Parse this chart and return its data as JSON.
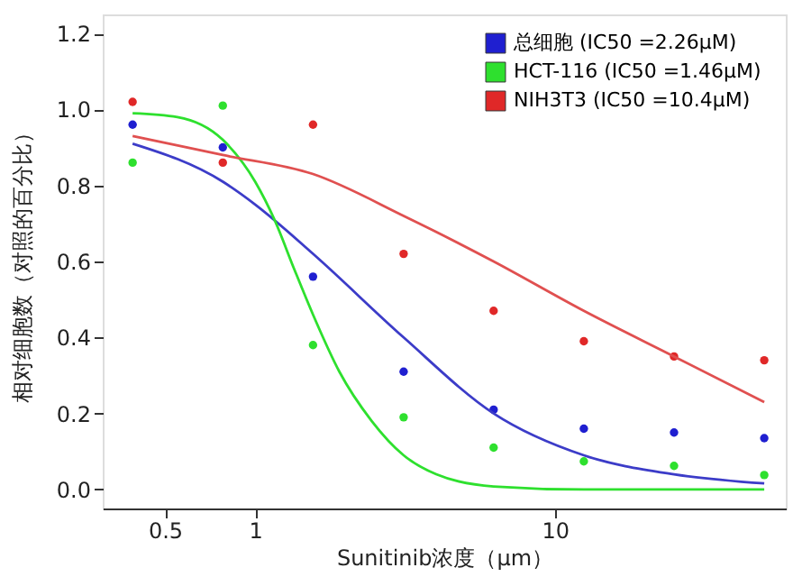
{
  "chart_data": {
    "type": "scatter",
    "xlabel": "Sunitinib浓度（μm）",
    "ylabel": "相对细胞数（对照的百分比）",
    "log": "x",
    "xlim": [
      0.31,
      59
    ],
    "xticks": [
      0.5,
      1,
      10
    ],
    "ylim": [
      -0.05,
      1.25
    ],
    "yticks": [
      {
        "value": 0,
        "label": "0.0"
      },
      0.2,
      0.4,
      0.6,
      0.8,
      {
        "value": 1,
        "label": "1.0"
      },
      1.2
    ],
    "grid": false,
    "legend": "top right",
    "marker": "circle",
    "series": [
      {
        "name": "总细胞  (IC50 =2.26μM)",
        "color": "#1f1fd0",
        "x": [
          0.39,
          0.78,
          1.56,
          3.13,
          6.25,
          12.5,
          25,
          50
        ],
        "values": [
          0.96,
          0.9,
          0.56,
          0.31,
          0.21,
          0.16,
          0.15,
          0.135
        ]
      },
      {
        "name": "HCT-116  (IC50 =1.46μM)",
        "color": "#2ee02e",
        "x": [
          0.39,
          0.78,
          1.56,
          3.13,
          6.25,
          12.5,
          25,
          50
        ],
        "values": [
          0.86,
          1.01,
          0.38,
          0.19,
          0.11,
          0.074,
          0.062,
          0.038
        ]
      },
      {
        "name": "NIH3T3  (IC50 =10.4μM)",
        "color": "#e02828",
        "x": [
          0.39,
          0.78,
          1.56,
          3.13,
          6.25,
          12.5,
          25,
          50
        ],
        "values": [
          1.02,
          0.86,
          0.96,
          0.62,
          0.47,
          0.39,
          0.35,
          0.34
        ]
      },
      {
        "type": "line",
        "color": "#3c3cc8",
        "line_style": "solid",
        "marker": "none",
        "x": [
          0.39,
          0.78,
          1.0,
          1.56,
          3.13,
          6.25,
          12.5,
          25,
          50
        ],
        "values": [
          0.91,
          0.81,
          0.75,
          0.62,
          0.4,
          0.2,
          0.09,
          0.04,
          0.016
        ]
      },
      {
        "type": "line",
        "color": "#2ee02e",
        "line_style": "solid",
        "marker": "none",
        "x": [
          0.39,
          0.55,
          0.78,
          1.0,
          1.16,
          1.35,
          1.56,
          1.91,
          2.45,
          3.13,
          4.02,
          6.25,
          12.5,
          50
        ],
        "values": [
          0.99,
          0.98,
          0.92,
          0.81,
          0.71,
          0.58,
          0.46,
          0.31,
          0.18,
          0.09,
          0.04,
          0.008,
          0.0,
          0.0
        ]
      },
      {
        "type": "line",
        "color": "#e05050",
        "line_style": "solid",
        "marker": "none",
        "x": [
          0.39,
          0.78,
          1.56,
          3.13,
          6.25,
          12.5,
          25,
          50
        ],
        "values": [
          0.93,
          0.88,
          0.83,
          0.72,
          0.6,
          0.47,
          0.35,
          0.23
        ]
      }
    ]
  }
}
